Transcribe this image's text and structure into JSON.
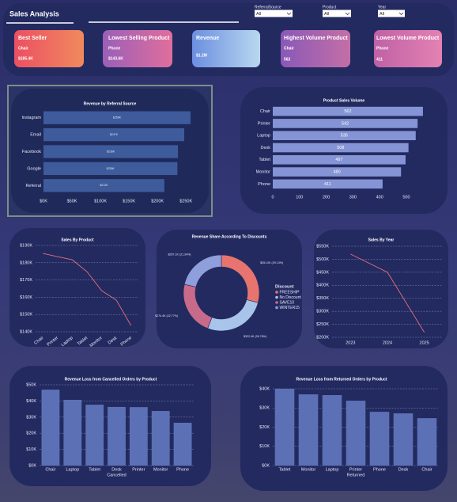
{
  "header": {
    "title": "Sales Analysis",
    "filters": [
      {
        "label": "ReferralSource",
        "value": "All"
      },
      {
        "label": "Product",
        "value": "All"
      },
      {
        "label": "Year",
        "value": "All"
      }
    ]
  },
  "kpis": [
    {
      "title": "Best Seller",
      "item": "Chair",
      "value": "$185.4K"
    },
    {
      "title": "Lowest Selling Product",
      "item": "Phone",
      "value": "$143.6K"
    },
    {
      "title": "Revenue",
      "value": "$1.2M"
    },
    {
      "title": "Highest Volume Product",
      "item": "Chair",
      "value": "562"
    },
    {
      "title": "Lowest Volume Product",
      "item": "Phone",
      "value": "411"
    }
  ],
  "chart_data": [
    {
      "type": "bar",
      "orientation": "horizontal",
      "title": "Revenue by Referral Source",
      "categories": [
        "Instagram",
        "Email",
        "Facebook",
        "Google",
        "Referral"
      ],
      "values": [
        258000,
        247000,
        236000,
        235000,
        212000
      ],
      "value_labels": [
        "$258K",
        "$247K",
        "$236K",
        "$235K",
        "$212K"
      ],
      "color": "#3e5c9c",
      "xlim": [
        0,
        265000
      ],
      "xticks": [
        {
          "value": 0,
          "label": "$0K"
        },
        {
          "value": 50000,
          "label": "$50K"
        },
        {
          "value": 100000,
          "label": "$100K"
        },
        {
          "value": 150000,
          "label": "$150K"
        },
        {
          "value": 200000,
          "label": "$200K"
        },
        {
          "value": 250000,
          "label": "$250K"
        }
      ]
    },
    {
      "type": "bar",
      "orientation": "horizontal",
      "title": "Product Sales Volume",
      "categories": [
        "Chair",
        "Printer",
        "Laptop",
        "Desk",
        "Tablet",
        "Monitor",
        "Phone"
      ],
      "values": [
        562,
        542,
        535,
        508,
        497,
        480,
        411
      ],
      "color": "#8494d4",
      "xlim": [
        0,
        580
      ],
      "xticks": [
        0,
        100,
        200,
        300,
        400,
        500
      ]
    },
    {
      "type": "line",
      "title": "Sales By Product",
      "categories": [
        "Chair",
        "Printer",
        "Laptop",
        "Tablet",
        "Monitor",
        "Desk",
        "Phone"
      ],
      "values": [
        185400,
        183500,
        181700,
        174800,
        163800,
        158300,
        143600
      ],
      "color": "#e0707a",
      "ylim": [
        140000,
        190000
      ],
      "grid": true,
      "yticks": [
        {
          "value": 140000,
          "label": "$140K"
        },
        {
          "value": 150000,
          "label": "$150K"
        },
        {
          "value": 160000,
          "label": "$160K"
        },
        {
          "value": 170000,
          "label": "$170K"
        },
        {
          "value": 180000,
          "label": "$180K"
        },
        {
          "value": 190000,
          "label": "$190K"
        }
      ]
    },
    {
      "type": "donut",
      "title": "Revenue Share According To Discounts",
      "legend_title": "Discount",
      "categories": [
        "FREESHIP",
        "No Discount",
        "SAVE10",
        "WINTER15"
      ],
      "values": [
        351000,
        322400,
        274400,
        257100
      ],
      "value_labels": [
        "$351.0K (29.13%)",
        "$322.4K (26.76%)",
        "$274.4K (22.77%)",
        "$257.1K (21.34%)"
      ],
      "colors": [
        "#e8746f",
        "#a8c4ea",
        "#c86a8a",
        "#8f9fdc"
      ]
    },
    {
      "type": "line",
      "title": "Sales By Year",
      "categories": [
        "2023",
        "2024",
        "2025"
      ],
      "values": [
        520000,
        450000,
        219000
      ],
      "color": "#e0707a",
      "ylim": [
        200000,
        550000
      ],
      "grid": true,
      "yticks": [
        {
          "value": 200000,
          "label": "$200K"
        },
        {
          "value": 250000,
          "label": "$250K"
        },
        {
          "value": 300000,
          "label": "$300K"
        },
        {
          "value": 350000,
          "label": "$350K"
        },
        {
          "value": 400000,
          "label": "$400K"
        },
        {
          "value": 450000,
          "label": "$450K"
        },
        {
          "value": 500000,
          "label": "$500K"
        },
        {
          "value": 550000,
          "label": "$550K"
        }
      ]
    },
    {
      "type": "bar",
      "orientation": "vertical",
      "title": "Revenue Loss from Cancelled Orders by Product",
      "xlabel": "Cancelled",
      "categories": [
        "Chair",
        "Laptop",
        "Tablet",
        "Desk",
        "Printer",
        "Monitor",
        "Phone"
      ],
      "values": [
        47000,
        40700,
        37700,
        36300,
        36200,
        33800,
        26500
      ],
      "color": "#5c70b6",
      "ylim": [
        0,
        50000
      ],
      "grid": true,
      "yticks": [
        {
          "value": 0,
          "label": "$0K"
        },
        {
          "value": 10000,
          "label": "$10K"
        },
        {
          "value": 20000,
          "label": "$20K"
        },
        {
          "value": 30000,
          "label": "$30K"
        },
        {
          "value": 40000,
          "label": "$40K"
        },
        {
          "value": 50000,
          "label": "$50K"
        }
      ]
    },
    {
      "type": "bar",
      "orientation": "vertical",
      "title": "Revenue Loss from Returned Orders by Product",
      "xlabel": "Returned",
      "categories": [
        "Tablet",
        "Monitor",
        "Laptop",
        "Printer",
        "Phone",
        "Desk",
        "Chair"
      ],
      "values": [
        40000,
        37100,
        36700,
        33800,
        28000,
        27200,
        24700
      ],
      "color": "#5c70b6",
      "ylim": [
        0,
        40000
      ],
      "grid": true,
      "yticks": [
        {
          "value": 0,
          "label": "$0K"
        },
        {
          "value": 10000,
          "label": "$10K"
        },
        {
          "value": 20000,
          "label": "$20K"
        },
        {
          "value": 30000,
          "label": "$30K"
        },
        {
          "value": 40000,
          "label": "$40K"
        }
      ]
    }
  ]
}
